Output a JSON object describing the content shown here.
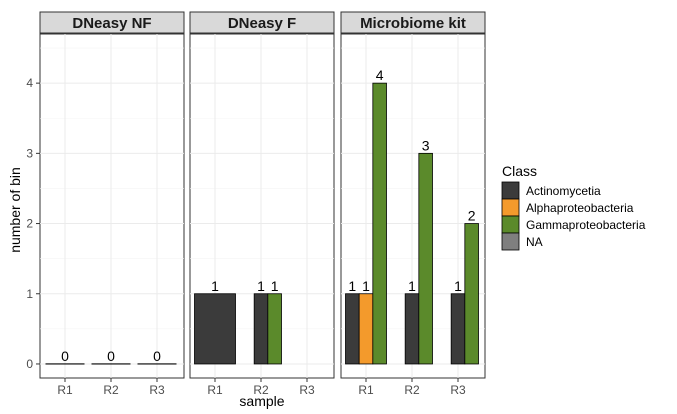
{
  "chart_data": {
    "type": "bar",
    "xlabel": "sample",
    "ylabel": "number of bin",
    "ylim": [
      -0.2,
      4.7
    ],
    "yticks": [
      0,
      1,
      2,
      3,
      4
    ],
    "grid": true,
    "legend_position": "right",
    "legend": {
      "title": "Class",
      "entries": [
        {
          "name": "Actinomycetia",
          "color": "#3b3b3b"
        },
        {
          "name": "Alphaproteobacteria",
          "color": "#f39a2c"
        },
        {
          "name": "Gammaproteobacteria",
          "color": "#5b8a2b"
        },
        {
          "name": "NA",
          "color": "#7f7f7f"
        }
      ]
    },
    "categories": [
      "R1",
      "R2",
      "R3"
    ],
    "panels": [
      {
        "title": "DNeasy NF",
        "groups": [
          {
            "sample": "R1",
            "bars": [
              {
                "class": "NA",
                "value": 0,
                "label": "0"
              }
            ]
          },
          {
            "sample": "R2",
            "bars": [
              {
                "class": "NA",
                "value": 0,
                "label": "0"
              }
            ]
          },
          {
            "sample": "R3",
            "bars": [
              {
                "class": "NA",
                "value": 0,
                "label": "0"
              }
            ]
          }
        ]
      },
      {
        "title": "DNeasy F",
        "groups": [
          {
            "sample": "R1",
            "bars": [
              {
                "class": "Actinomycetia",
                "value": 1,
                "label": "1"
              }
            ]
          },
          {
            "sample": "R2",
            "bars": [
              {
                "class": "Actinomycetia",
                "value": 1,
                "label": "1"
              },
              {
                "class": "Gammaproteobacteria",
                "value": 1,
                "label": "1"
              }
            ]
          },
          {
            "sample": "R3",
            "bars": []
          }
        ]
      },
      {
        "title": "Microbiome kit",
        "groups": [
          {
            "sample": "R1",
            "bars": [
              {
                "class": "Actinomycetia",
                "value": 1,
                "label": "1"
              },
              {
                "class": "Alphaproteobacteria",
                "value": 1,
                "label": "1"
              },
              {
                "class": "Gammaproteobacteria",
                "value": 4,
                "label": "4"
              }
            ]
          },
          {
            "sample": "R2",
            "bars": [
              {
                "class": "Actinomycetia",
                "value": 1,
                "label": "1"
              },
              {
                "class": "Gammaproteobacteria",
                "value": 3,
                "label": "3"
              }
            ]
          },
          {
            "sample": "R3",
            "bars": [
              {
                "class": "Actinomycetia",
                "value": 1,
                "label": "1"
              },
              {
                "class": "Gammaproteobacteria",
                "value": 2,
                "label": "2"
              }
            ]
          }
        ]
      }
    ]
  }
}
